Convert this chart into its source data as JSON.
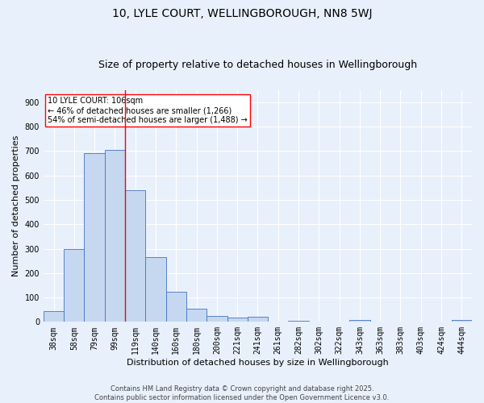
{
  "title1": "10, LYLE COURT, WELLINGBOROUGH, NN8 5WJ",
  "title2": "Size of property relative to detached houses in Wellingborough",
  "xlabel": "Distribution of detached houses by size in Wellingborough",
  "ylabel": "Number of detached properties",
  "bar_labels": [
    "38sqm",
    "58sqm",
    "79sqm",
    "99sqm",
    "119sqm",
    "140sqm",
    "160sqm",
    "180sqm",
    "200sqm",
    "221sqm",
    "241sqm",
    "261sqm",
    "282sqm",
    "302sqm",
    "322sqm",
    "343sqm",
    "363sqm",
    "383sqm",
    "403sqm",
    "424sqm",
    "444sqm"
  ],
  "bar_values": [
    45,
    300,
    690,
    706,
    540,
    265,
    122,
    55,
    25,
    17,
    20,
    2,
    5,
    1,
    0,
    8,
    1,
    0,
    2,
    0,
    7
  ],
  "bar_color": "#c5d8f0",
  "bar_edge_color": "#4472c4",
  "background_color": "#e8f0fb",
  "grid_color": "#ffffff",
  "vline_x": 3.5,
  "vline_color": "red",
  "annotation_text": "10 LYLE COURT: 106sqm\n← 46% of detached houses are smaller (1,266)\n54% of semi-detached houses are larger (1,488) →",
  "annotation_box_color": "white",
  "annotation_box_edge": "red",
  "ylim": [
    0,
    950
  ],
  "yticks": [
    0,
    100,
    200,
    300,
    400,
    500,
    600,
    700,
    800,
    900
  ],
  "footer": "Contains HM Land Registry data © Crown copyright and database right 2025.\nContains public sector information licensed under the Open Government Licence v3.0.",
  "title1_fontsize": 10,
  "title2_fontsize": 9,
  "axis_label_fontsize": 8,
  "tick_fontsize": 7,
  "annotation_fontsize": 7,
  "footer_fontsize": 6
}
